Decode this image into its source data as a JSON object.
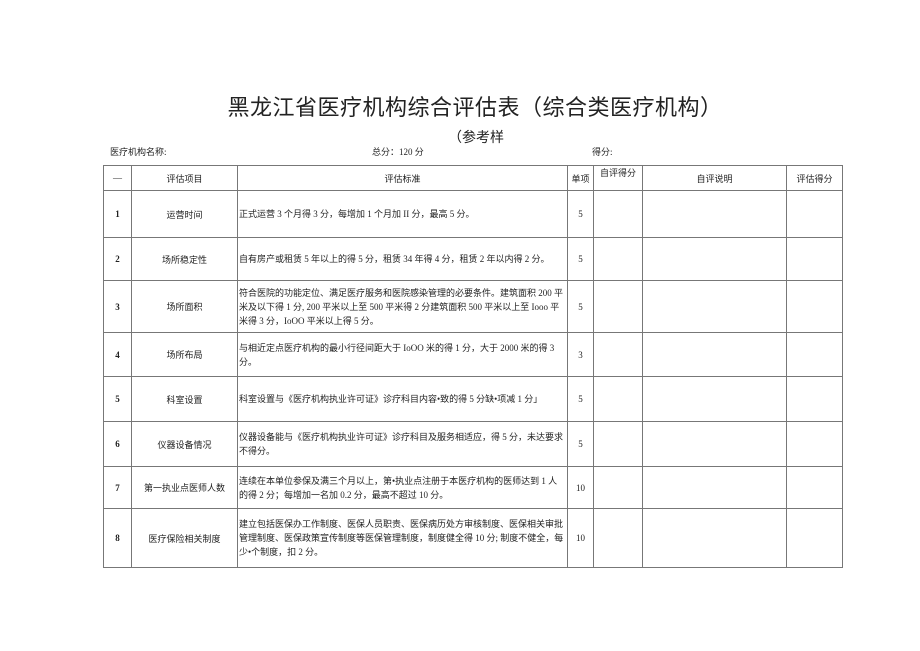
{
  "title": "黑龙江省医疗机构综合评估表（综合类医疗机构）",
  "subtitle": "（参考样",
  "meta": {
    "name_label": "医疗机构名称:",
    "total_label": "总分：120 分",
    "score_label": "得分:"
  },
  "headers": {
    "no": "—",
    "item": "评估项目",
    "standard": "评估标准",
    "single": "单项",
    "self_score": "自评得分",
    "self_note": "自评说明",
    "eval_score": "评估得分"
  },
  "rows": [
    {
      "no": "1",
      "item": "运营时间",
      "standard": "正式运营 3 个月得 3 分，每增加 1 个月加 II 分，最高 5 分。",
      "single": "5"
    },
    {
      "no": "2",
      "item": "场所稳定性",
      "standard": "自有房产或租赁 5 年以上的得 5 分，租赁 34 年得 4 分，租赁 2 年以内得 2 分。",
      "single": "5"
    },
    {
      "no": "3",
      "item": "场所面积",
      "standard": "符合医院的功能定位、满足医疗服务和医院感染管理的必要条件。建筑面积 200 平米及以下得 1 分, 200 平米以上至 500 平米得 2 分建筑面积 500 平米以上至 Iooo 平米得 3 分，IoOO 平米以上得 5 分。",
      "single": "5"
    },
    {
      "no": "4",
      "item": "场所布局",
      "standard": "与相近定点医疗机构的最小行径间距大于 IoOO 米的得 1 分，大于 2000 米的得 3 分。",
      "single": "3"
    },
    {
      "no": "5",
      "item": "科室设置",
      "standard": "科室设置与《医疗机构执业许可证》诊疗科目内容•致的得 5 分缺•项减 1 分」",
      "single": "5"
    },
    {
      "no": "6",
      "item": "仪器设备情况",
      "standard": "仪器设备能与《医疗机构执业许可证》诊疗科目及服务相适应，得 5 分，未达要求不得分。",
      "single": "5"
    },
    {
      "no": "7",
      "item": "第一执业点医师人数",
      "standard": "连续在本单位参保及满三个月以上，第•执业点注册于本医疗机构的医师达到 1 人的得 2 分；每增加一名加 0.2 分，最高不超过 10 分。",
      "single": "10"
    },
    {
      "no": "8",
      "item": "医疗保险相关制度",
      "standard": "建立包括医保办工作制度、医保人员职责、医保病历处方审核制度、医保相关审批管理制度、医保政策宣传制度等医保管理制度，制度健全得 10 分; 制度不健全，每少•个制度，扣 2 分。",
      "single": "10"
    }
  ]
}
